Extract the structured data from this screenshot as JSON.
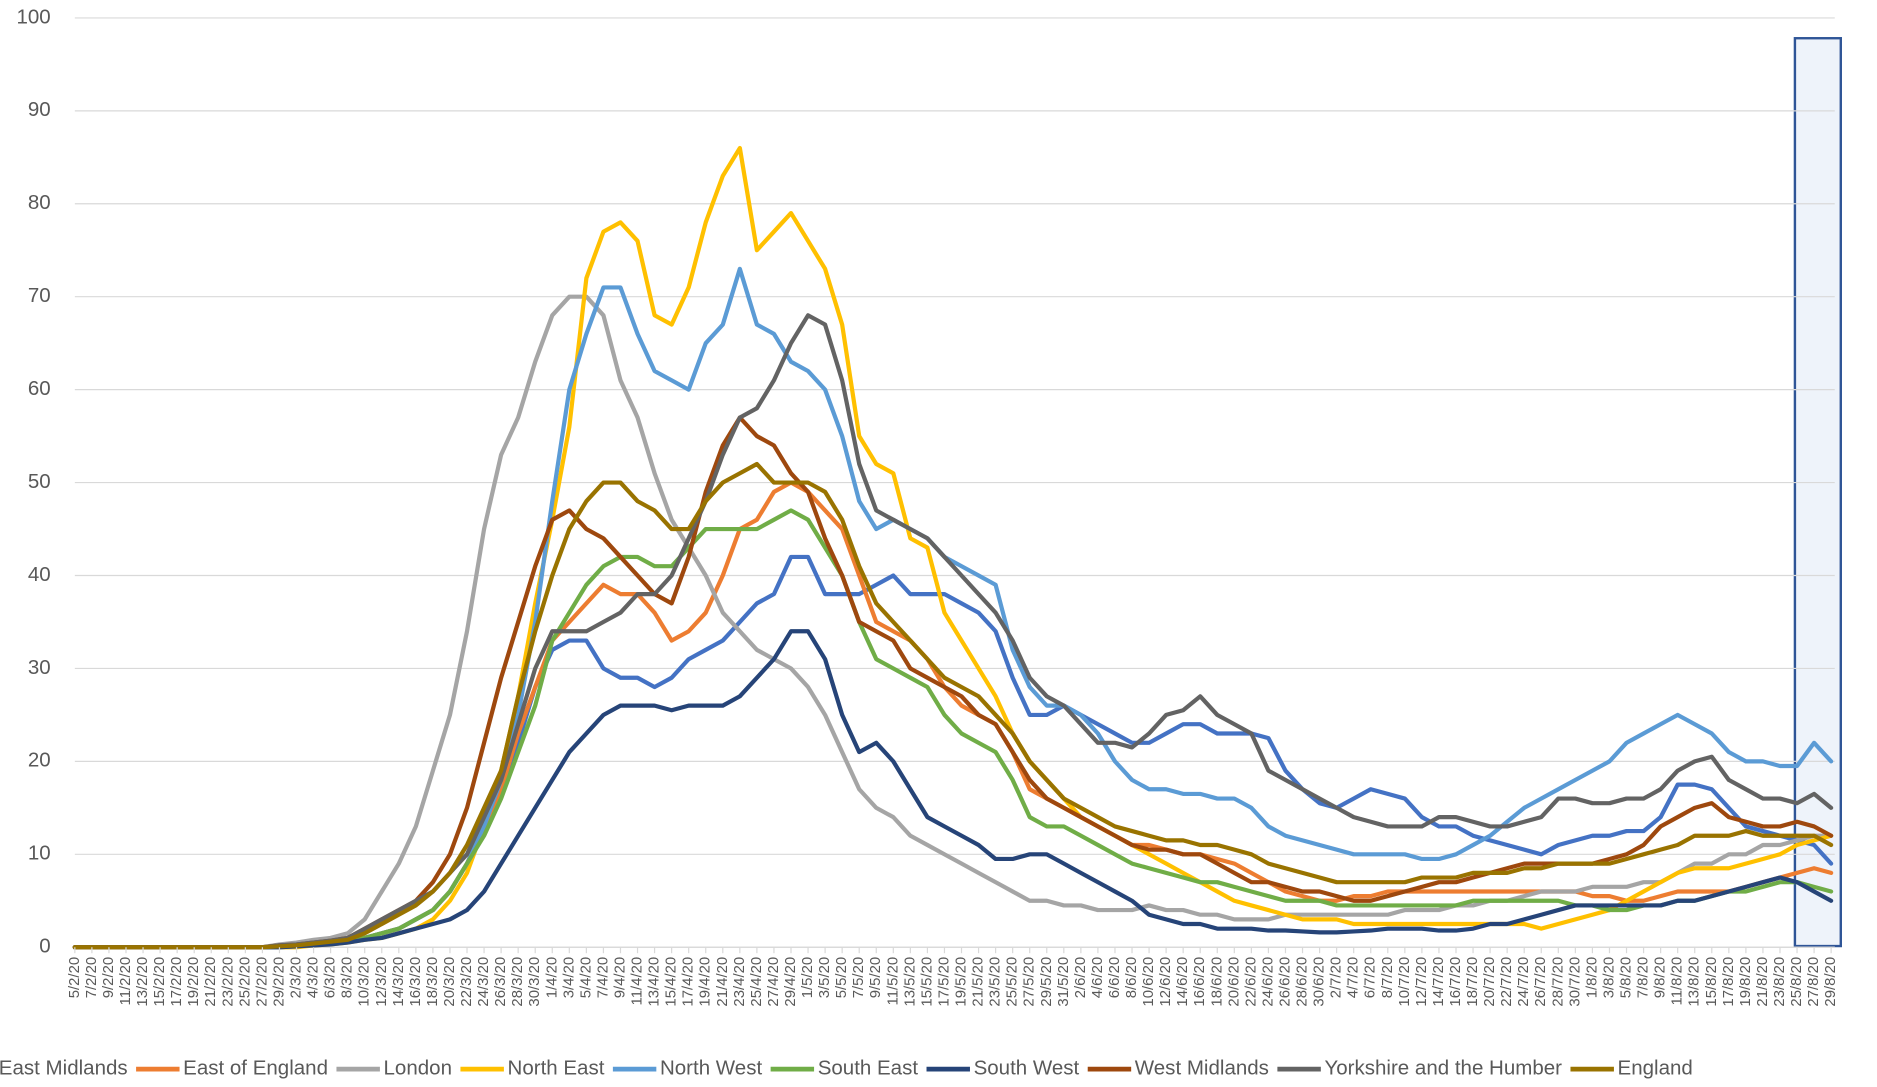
{
  "chart_data": {
    "type": "line",
    "categories": [
      "5/2/20",
      "7/2/20",
      "9/2/20",
      "11/2/20",
      "13/2/20",
      "15/2/20",
      "17/2/20",
      "19/2/20",
      "21/2/20",
      "23/2/20",
      "25/2/20",
      "27/2/20",
      "29/2/20",
      "2/3/20",
      "4/3/20",
      "6/3/20",
      "8/3/20",
      "10/3/20",
      "12/3/20",
      "14/3/20",
      "16/3/20",
      "18/3/20",
      "20/3/20",
      "22/3/20",
      "24/3/20",
      "26/3/20",
      "28/3/20",
      "30/3/20",
      "1/4/20",
      "3/4/20",
      "5/4/20",
      "7/4/20",
      "9/4/20",
      "11/4/20",
      "13/4/20",
      "15/4/20",
      "17/4/20",
      "19/4/20",
      "21/4/20",
      "23/4/20",
      "25/4/20",
      "27/4/20",
      "29/4/20",
      "1/5/20",
      "3/5/20",
      "5/5/20",
      "7/5/20",
      "9/5/20",
      "11/5/20",
      "13/5/20",
      "15/5/20",
      "17/5/20",
      "19/5/20",
      "21/5/20",
      "23/5/20",
      "25/5/20",
      "27/5/20",
      "29/5/20",
      "31/5/20",
      "2/6/20",
      "4/6/20",
      "6/6/20",
      "8/6/20",
      "10/6/20",
      "12/6/20",
      "14/6/20",
      "16/6/20",
      "18/6/20",
      "20/6/20",
      "22/6/20",
      "24/6/20",
      "26/6/20",
      "28/6/20",
      "30/6/20",
      "2/7/20",
      "4/7/20",
      "6/7/20",
      "8/7/20",
      "10/7/20",
      "12/7/20",
      "14/7/20",
      "16/7/20",
      "18/7/20",
      "20/7/20",
      "22/7/20",
      "24/7/20",
      "26/7/20",
      "28/7/20",
      "30/7/20",
      "1/8/20",
      "3/8/20",
      "5/8/20",
      "7/8/20",
      "9/8/20",
      "11/8/20",
      "13/8/20",
      "15/8/20",
      "17/8/20",
      "19/8/20",
      "21/8/20",
      "23/8/20",
      "25/8/20",
      "27/8/20",
      "29/8/20"
    ],
    "ylim": [
      0,
      100
    ],
    "yticks": [
      0,
      10,
      20,
      30,
      40,
      50,
      60,
      70,
      80,
      90,
      100
    ],
    "grid": true,
    "legend": "bottom",
    "series": [
      {
        "name": "East Midlands",
        "color": "#4472c4",
        "values": [
          0,
          0,
          0,
          0,
          0,
          0,
          0,
          0,
          0,
          0,
          0,
          0,
          0.1,
          0.2,
          0.3,
          0.5,
          0.7,
          1,
          1.5,
          2,
          3,
          4,
          6,
          9,
          13,
          17,
          22,
          28,
          32,
          33,
          33,
          30,
          29,
          29,
          28,
          29,
          31,
          32,
          33,
          35,
          37,
          38,
          42,
          42,
          38,
          38,
          38,
          39,
          40,
          38,
          38,
          38,
          37,
          36,
          34,
          29,
          25,
          25,
          26,
          25,
          24,
          23,
          22,
          22,
          23,
          24,
          24,
          23,
          23,
          23,
          22.5,
          19,
          17,
          15.5,
          15,
          16,
          17,
          16.5,
          16,
          14,
          13,
          13,
          12,
          11.5,
          11,
          10.5,
          10,
          11,
          11.5,
          12,
          12,
          12.5,
          12.5,
          14,
          17.5,
          17.5,
          17,
          15,
          13,
          12.5,
          12,
          11.5,
          11,
          9
        ]
      },
      {
        "name": "East of England",
        "color": "#ed7d31",
        "values": [
          0,
          0,
          0,
          0,
          0,
          0,
          0,
          0,
          0,
          0,
          0,
          0,
          0.1,
          0.2,
          0.3,
          0.5,
          0.7,
          1,
          1.5,
          2,
          3,
          4,
          6,
          9,
          13,
          17,
          23,
          28,
          33,
          35,
          37,
          39,
          38,
          38,
          36,
          33,
          34,
          36,
          40,
          45,
          46,
          49,
          50,
          49,
          47,
          45,
          40,
          35,
          34,
          33,
          31,
          28,
          26,
          25,
          24,
          21,
          17,
          16,
          15,
          14,
          13,
          12,
          11,
          11,
          10.5,
          10,
          10,
          9.5,
          9,
          8,
          7,
          6,
          5.5,
          5,
          5,
          5.5,
          5.5,
          6,
          6,
          6,
          6,
          6,
          6,
          6,
          6,
          6,
          6,
          6,
          6,
          5.5,
          5.5,
          5,
          5,
          5.5,
          6,
          6,
          6,
          6,
          6.5,
          7,
          7.5,
          8,
          8.5,
          8
        ]
      },
      {
        "name": "London",
        "color": "#a5a5a5",
        "values": [
          0,
          0,
          0,
          0,
          0,
          0,
          0,
          0,
          0,
          0,
          0,
          0,
          0.3,
          0.5,
          0.8,
          1,
          1.5,
          3,
          6,
          9,
          13,
          19,
          25,
          34,
          45,
          53,
          57,
          63,
          68,
          70,
          70,
          68,
          61,
          57,
          51,
          46,
          43,
          40,
          36,
          34,
          32,
          31,
          30,
          28,
          25,
          21,
          17,
          15,
          14,
          12,
          11,
          10,
          9,
          8,
          7,
          6,
          5,
          5,
          4.5,
          4.5,
          4,
          4,
          4,
          4.5,
          4,
          4,
          3.5,
          3.5,
          3,
          3,
          3,
          3.5,
          3.5,
          3.5,
          3.5,
          3.5,
          3.5,
          3.5,
          4,
          4,
          4,
          4.5,
          4.5,
          5,
          5,
          5.5,
          6,
          6,
          6,
          6.5,
          6.5,
          6.5,
          7,
          7,
          8,
          9,
          9,
          10,
          10,
          11,
          11,
          11.5,
          12,
          12
        ]
      },
      {
        "name": "North East",
        "color": "#ffc000",
        "values": [
          0,
          0,
          0,
          0,
          0,
          0,
          0,
          0,
          0,
          0,
          0,
          0,
          0,
          0,
          0.2,
          0.3,
          0.5,
          0.8,
          1,
          1.5,
          2,
          3,
          5,
          8,
          13,
          19,
          27,
          37,
          46,
          56,
          72,
          77,
          78,
          76,
          68,
          67,
          71,
          78,
          83,
          86,
          75,
          77,
          79,
          76,
          73,
          67,
          55,
          52,
          51,
          44,
          43,
          36,
          33,
          30,
          27,
          23,
          20,
          18,
          16,
          14,
          13,
          12,
          11,
          10,
          9,
          8,
          7,
          6,
          5,
          4.5,
          4,
          3.5,
          3,
          3,
          3,
          2.5,
          2.5,
          2.5,
          2.5,
          2.5,
          2.5,
          2.5,
          2.5,
          2.5,
          2.5,
          2.5,
          2,
          2.5,
          3,
          3.5,
          4,
          5,
          6,
          7,
          8,
          8.5,
          8.5,
          8.5,
          9,
          9.5,
          10,
          11,
          11.5,
          12
        ]
      },
      {
        "name": "North West",
        "color": "#5b9bd5",
        "values": [
          0,
          0,
          0,
          0,
          0,
          0,
          0,
          0,
          0,
          0,
          0,
          0,
          0,
          0.1,
          0.3,
          0.5,
          0.7,
          1,
          1.5,
          2,
          3,
          4,
          6,
          9,
          13,
          18,
          25,
          35,
          48,
          60,
          66,
          71,
          71,
          66,
          62,
          61,
          60,
          65,
          67,
          73,
          67,
          66,
          63,
          62,
          60,
          55,
          48,
          45,
          46,
          45,
          44,
          42,
          41,
          40,
          39,
          32,
          28,
          26,
          26,
          25,
          23,
          20,
          18,
          17,
          17,
          16.5,
          16.5,
          16,
          16,
          15,
          13,
          12,
          11.5,
          11,
          10.5,
          10,
          10,
          10,
          10,
          9.5,
          9.5,
          10,
          11,
          12,
          13.5,
          15,
          16,
          17,
          18,
          19,
          20,
          22,
          23,
          24,
          25,
          24,
          23,
          21,
          20,
          20,
          19.5,
          19.5,
          22,
          20
        ]
      },
      {
        "name": "South East",
        "color": "#70ad47",
        "values": [
          0,
          0,
          0,
          0,
          0,
          0,
          0,
          0,
          0,
          0,
          0,
          0,
          0.1,
          0.2,
          0.3,
          0.5,
          0.7,
          1,
          1.5,
          2,
          3,
          4,
          6,
          9,
          12,
          16,
          21,
          26,
          33,
          36,
          39,
          41,
          42,
          42,
          41,
          41,
          43,
          45,
          45,
          45,
          45,
          46,
          47,
          46,
          43,
          40,
          35,
          31,
          30,
          29,
          28,
          25,
          23,
          22,
          21,
          18,
          14,
          13,
          13,
          12,
          11,
          10,
          9,
          8.5,
          8,
          7.5,
          7,
          7,
          6.5,
          6,
          5.5,
          5,
          5,
          5,
          4.5,
          4.5,
          4.5,
          4.5,
          4.5,
          4.5,
          4.5,
          4.5,
          5,
          5,
          5,
          5,
          5,
          5,
          4.5,
          4.5,
          4,
          4,
          4.5,
          4.5,
          5,
          5,
          5.5,
          6,
          6,
          6.5,
          7,
          7,
          6.5,
          6
        ]
      },
      {
        "name": "South West",
        "color": "#264478",
        "values": [
          0,
          0,
          0,
          0,
          0,
          0,
          0,
          0,
          0,
          0,
          0,
          0,
          0,
          0.1,
          0.2,
          0.3,
          0.5,
          0.8,
          1,
          1.5,
          2,
          2.5,
          3,
          4,
          6,
          9,
          12,
          15,
          18,
          21,
          23,
          25,
          26,
          26,
          26,
          25.5,
          26,
          26,
          26,
          27,
          29,
          31,
          34,
          34,
          31,
          25,
          21,
          22,
          20,
          17,
          14,
          13,
          12,
          11,
          9.5,
          9.5,
          10,
          10,
          9,
          8,
          7,
          6,
          5,
          3.5,
          3,
          2.5,
          2.5,
          2,
          2,
          2,
          1.8,
          1.8,
          1.7,
          1.6,
          1.6,
          1.7,
          1.8,
          2,
          2,
          2,
          1.8,
          1.8,
          2,
          2.5,
          2.5,
          3,
          3.5,
          4,
          4.5,
          4.5,
          4.5,
          4.5,
          4.5,
          4.5,
          5,
          5,
          5.5,
          6,
          6.5,
          7,
          7.5,
          7,
          6,
          5
        ]
      },
      {
        "name": "West Midlands",
        "color": "#9e480e",
        "values": [
          0,
          0,
          0,
          0,
          0,
          0,
          0,
          0,
          0,
          0,
          0,
          0,
          0.2,
          0.3,
          0.5,
          0.7,
          1,
          2,
          3,
          4,
          5,
          7,
          10,
          15,
          22,
          29,
          35,
          41,
          46,
          47,
          45,
          44,
          42,
          40,
          38,
          37,
          42,
          49,
          54,
          57,
          55,
          54,
          51,
          49,
          44,
          40,
          35,
          34,
          33,
          30,
          29,
          28,
          27,
          25,
          24,
          21,
          18,
          16,
          15,
          14,
          13,
          12,
          11,
          10.5,
          10.5,
          10,
          10,
          9,
          8,
          7,
          7,
          6.5,
          6,
          6,
          5.5,
          5,
          5,
          5.5,
          6,
          6.5,
          7,
          7,
          7.5,
          8,
          8.5,
          9,
          9,
          9,
          9,
          9,
          9.5,
          10,
          11,
          13,
          14,
          15,
          15.5,
          14,
          13.5,
          13,
          13,
          13.5,
          13,
          12
        ]
      },
      {
        "name": "Yorkshire and the Humber",
        "color": "#636363",
        "values": [
          0,
          0,
          0,
          0,
          0,
          0,
          0,
          0,
          0,
          0,
          0,
          0,
          0.2,
          0.3,
          0.5,
          0.7,
          1,
          2,
          3,
          4,
          5,
          6,
          8,
          10,
          14,
          18,
          24,
          30,
          34,
          34,
          34,
          35,
          36,
          38,
          38,
          40,
          44,
          48,
          53,
          57,
          58,
          61,
          65,
          68,
          67,
          61,
          52,
          47,
          46,
          45,
          44,
          42,
          40,
          38,
          36,
          33,
          29,
          27,
          26,
          24,
          22,
          22,
          21.5,
          23,
          25,
          25.5,
          27,
          25,
          24,
          23,
          19,
          18,
          17,
          16,
          15,
          14,
          13.5,
          13,
          13,
          13,
          14,
          14,
          13.5,
          13,
          13,
          13.5,
          14,
          16,
          16,
          15.5,
          15.5,
          16,
          16,
          17,
          19,
          20,
          20.5,
          18,
          17,
          16,
          16,
          15.5,
          16.5,
          15
        ]
      },
      {
        "name": "England",
        "color": "#997300",
        "values": [
          0,
          0,
          0,
          0,
          0,
          0,
          0,
          0,
          0,
          0,
          0,
          0,
          0.1,
          0.2,
          0.4,
          0.6,
          0.8,
          1.5,
          2.5,
          3.5,
          4.5,
          6,
          8,
          11,
          15,
          19,
          27,
          34,
          40,
          45,
          48,
          50,
          50,
          48,
          47,
          45,
          45,
          48,
          50,
          51,
          52,
          50,
          50,
          50,
          49,
          46,
          41,
          37,
          35,
          33,
          31,
          29,
          28,
          27,
          25,
          23,
          20,
          18,
          16,
          15,
          14,
          13,
          12.5,
          12,
          11.5,
          11.5,
          11,
          11,
          10.5,
          10,
          9,
          8.5,
          8,
          7.5,
          7,
          7,
          7,
          7,
          7,
          7.5,
          7.5,
          7.5,
          8,
          8,
          8,
          8.5,
          8.5,
          9,
          9,
          9,
          9,
          9.5,
          10,
          10.5,
          11,
          12,
          12,
          12,
          12.5,
          12,
          12,
          12,
          12,
          11
        ]
      }
    ]
  }
}
